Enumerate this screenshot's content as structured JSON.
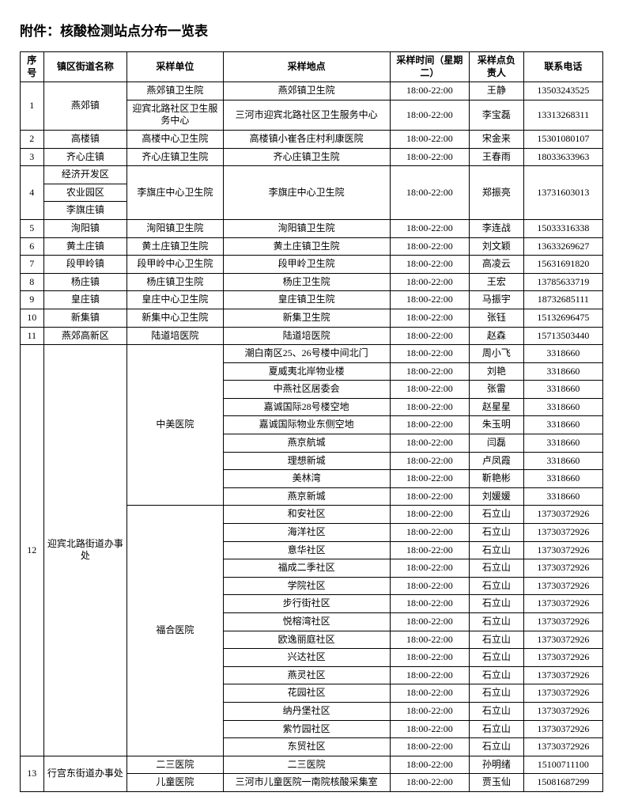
{
  "title": "附件：核酸检测站点分布一览表",
  "headers": {
    "seq": "序号",
    "town": "镇区街道名称",
    "unit": "采样单位",
    "location": "采样地点",
    "time": "采样时间（星期二）",
    "person": "采样点负责人",
    "phone": "联系电话"
  },
  "rows": [
    {
      "seq": "1",
      "town": "燕郊镇",
      "unit": "燕郊镇卫生院",
      "location": "燕郊镇卫生院",
      "time": "18:00-22:00",
      "person": "王静",
      "phone": "13503243525"
    },
    {
      "unit": "迎宾北路社区卫生服务中心",
      "location": "三河市迎宾北路社区卫生服务中心",
      "time": "18:00-22:00",
      "person": "李宝磊",
      "phone": "13313268311"
    },
    {
      "seq": "2",
      "town": "高楼镇",
      "unit": "高楼中心卫生院",
      "location": "高楼镇小崔各庄村利康医院",
      "time": "18:00-22:00",
      "person": "宋金来",
      "phone": "15301080107"
    },
    {
      "seq": "3",
      "town": "齐心庄镇",
      "unit": "齐心庄镇卫生院",
      "location": "齐心庄镇卫生院",
      "time": "18:00-22:00",
      "person": "王春雨",
      "phone": "18033633963"
    },
    {
      "seq": "4",
      "town": "经济开发区",
      "unit": "李旗庄中心卫生院",
      "location": "李旗庄中心卫生院",
      "time": "18:00-22:00",
      "person": "郑振亮",
      "phone": "13731603013"
    },
    {
      "town": "农业园区"
    },
    {
      "town": "李旗庄镇"
    },
    {
      "seq": "5",
      "town": "洵阳镇",
      "unit": "洵阳镇卫生院",
      "location": "洵阳镇卫生院",
      "time": "18:00-22:00",
      "person": "李连战",
      "phone": "15033316338"
    },
    {
      "seq": "6",
      "town": "黄土庄镇",
      "unit": "黄土庄镇卫生院",
      "location": "黄土庄镇卫生院",
      "time": "18:00-22:00",
      "person": "刘文颖",
      "phone": "13633269627"
    },
    {
      "seq": "7",
      "town": "段甲岭镇",
      "unit": "段甲岭中心卫生院",
      "location": "段甲岭卫生院",
      "time": "18:00-22:00",
      "person": "高凌云",
      "phone": "15631691820"
    },
    {
      "seq": "8",
      "town": "杨庄镇",
      "unit": "杨庄镇卫生院",
      "location": "杨庄卫生院",
      "time": "18:00-22:00",
      "person": "王宏",
      "phone": "13785633719"
    },
    {
      "seq": "9",
      "town": "皇庄镇",
      "unit": "皇庄中心卫生院",
      "location": "皇庄镇卫生院",
      "time": "18:00-22:00",
      "person": "马振宇",
      "phone": "18732685111"
    },
    {
      "seq": "10",
      "town": "新集镇",
      "unit": "新集中心卫生院",
      "location": "新集卫生院",
      "time": "18:00-22:00",
      "person": "张钰",
      "phone": "15132696475"
    },
    {
      "seq": "11",
      "town": "燕郊高新区",
      "unit": "陆道培医院",
      "location": "陆道培医院",
      "time": "18:00-22:00",
      "person": "赵森",
      "phone": "15713503440"
    },
    {
      "seq": "12",
      "town": "迎宾北路街道办事处",
      "unit": "中美医院",
      "location": "潮白南区25、26号楼中间北门",
      "time": "18:00-22:00",
      "person": "周小飞",
      "phone": "3318660"
    },
    {
      "location": "夏威夷北岸物业楼",
      "time": "18:00-22:00",
      "person": "刘艳",
      "phone": "3318660"
    },
    {
      "location": "中燕社区居委会",
      "time": "18:00-22:00",
      "person": "张雷",
      "phone": "3318660"
    },
    {
      "location": "嘉诚国际28号楼空地",
      "time": "18:00-22:00",
      "person": "赵星星",
      "phone": "3318660"
    },
    {
      "location": "嘉诚国际物业东侧空地",
      "time": "18:00-22:00",
      "person": "朱玉明",
      "phone": "3318660"
    },
    {
      "location": "燕京航城",
      "time": "18:00-22:00",
      "person": "闫磊",
      "phone": "3318660"
    },
    {
      "location": "理想新城",
      "time": "18:00-22:00",
      "person": "卢凤霞",
      "phone": "3318660"
    },
    {
      "location": "美林湾",
      "time": "18:00-22:00",
      "person": "靳艳彬",
      "phone": "3318660"
    },
    {
      "location": "燕京新城",
      "time": "18:00-22:00",
      "person": "刘媛媛",
      "phone": "3318660"
    },
    {
      "unit": "福合医院",
      "location": "和安社区",
      "time": "18:00-22:00",
      "person": "石立山",
      "phone": "13730372926"
    },
    {
      "location": "海洋社区",
      "time": "18:00-22:00",
      "person": "石立山",
      "phone": "13730372926"
    },
    {
      "location": "意华社区",
      "time": "18:00-22:00",
      "person": "石立山",
      "phone": "13730372926"
    },
    {
      "location": "福成二季社区",
      "time": "18:00-22:00",
      "person": "石立山",
      "phone": "13730372926"
    },
    {
      "location": "学院社区",
      "time": "18:00-22:00",
      "person": "石立山",
      "phone": "13730372926"
    },
    {
      "location": "步行街社区",
      "time": "18:00-22:00",
      "person": "石立山",
      "phone": "13730372926"
    },
    {
      "location": "悦榕湾社区",
      "time": "18:00-22:00",
      "person": "石立山",
      "phone": "13730372926"
    },
    {
      "location": "欧逸丽庭社区",
      "time": "18:00-22:00",
      "person": "石立山",
      "phone": "13730372926"
    },
    {
      "location": "兴达社区",
      "time": "18:00-22:00",
      "person": "石立山",
      "phone": "13730372926"
    },
    {
      "location": "燕灵社区",
      "time": "18:00-22:00",
      "person": "石立山",
      "phone": "13730372926"
    },
    {
      "location": "花园社区",
      "time": "18:00-22:00",
      "person": "石立山",
      "phone": "13730372926"
    },
    {
      "location": "纳丹堡社区",
      "time": "18:00-22:00",
      "person": "石立山",
      "phone": "13730372926"
    },
    {
      "location": "紫竹园社区",
      "time": "18:00-22:00",
      "person": "石立山",
      "phone": "13730372926"
    },
    {
      "location": "东贸社区",
      "time": "18:00-22:00",
      "person": "石立山",
      "phone": "13730372926"
    },
    {
      "seq": "13",
      "town": "行宫东街道办事处",
      "unit": "二三医院",
      "location": "二三医院",
      "time": "18:00-22:00",
      "person": "孙明绪",
      "phone": "15100711100"
    },
    {
      "unit": "儿童医院",
      "location": "三河市儿童医院一南院核酸采集室",
      "time": "18:00-22:00",
      "person": "贾玉仙",
      "phone": "15081687299"
    }
  ]
}
